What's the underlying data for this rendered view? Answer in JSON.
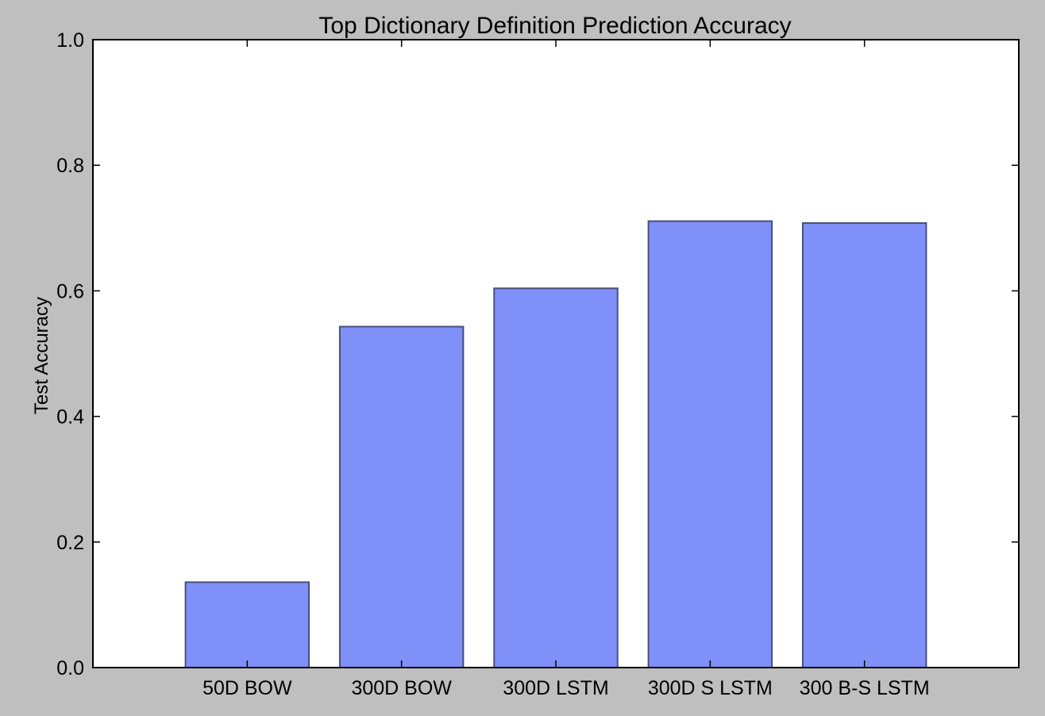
{
  "chart_data": {
    "type": "bar",
    "title": "Top Dictionary Definition Prediction Accuracy",
    "xlabel": "",
    "ylabel": "Test Accuracy",
    "categories": [
      "50D BOW",
      "300D BOW",
      "300D LSTM",
      "300D S LSTM",
      "300 B-S LSTM"
    ],
    "values": [
      0.136,
      0.543,
      0.604,
      0.711,
      0.708
    ],
    "ylim": [
      0.0,
      1.0
    ],
    "yticks": [
      "0.0",
      "0.2",
      "0.4",
      "0.6",
      "0.8",
      "1.0"
    ],
    "grid": false,
    "bar_color": "#8090f9",
    "bar_edge_color": "#4a4f7a",
    "background_color": "#bfbfbf",
    "plot_background_color": "#ffffff"
  }
}
